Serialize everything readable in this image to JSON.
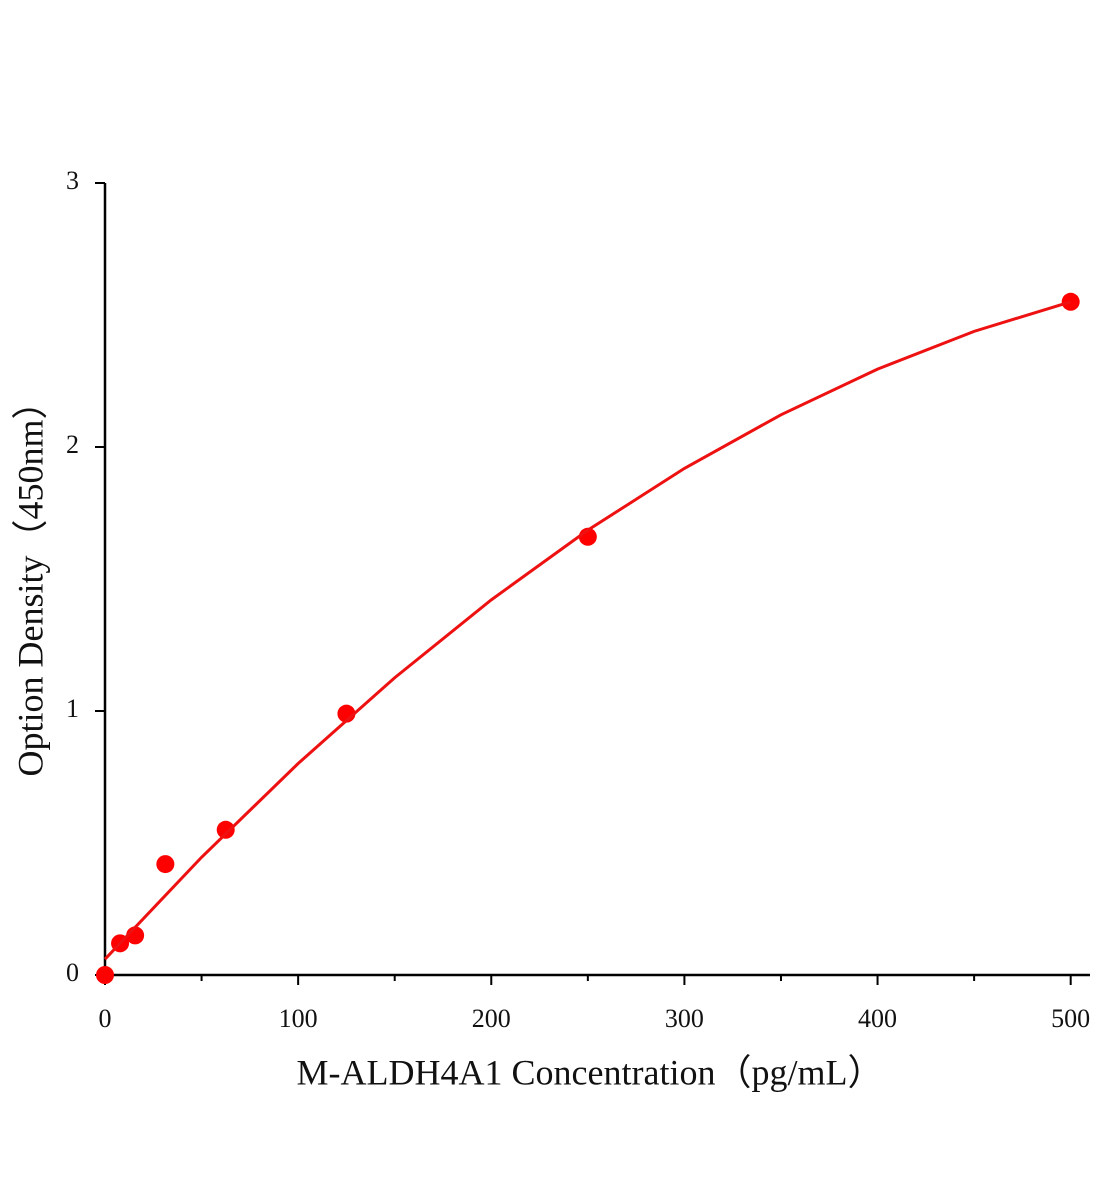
{
  "chart_data": {
    "type": "scatter",
    "xlabel": "M-ALDH4A1 Concentration（pg/mL）",
    "ylabel": "Option Density（450nm）",
    "xlim": [
      0,
      510
    ],
    "xticks": [
      0,
      100,
      200,
      300,
      400,
      500
    ],
    "xminorticks": [
      50,
      150,
      250,
      350,
      450
    ],
    "ylim": [
      0,
      3
    ],
    "yticks": [
      0,
      1,
      2,
      3
    ],
    "grid": false,
    "series": [
      {
        "mode": "markers",
        "color": "#ff0000",
        "x": [
          0,
          7.8,
          15.6,
          31.25,
          62.5,
          125,
          250,
          500
        ],
        "values": [
          0,
          0.12,
          0.15,
          0.42,
          0.55,
          0.99,
          1.66,
          2.55
        ]
      },
      {
        "mode": "line",
        "color": "#ee1111",
        "x": [
          0,
          50,
          100,
          150,
          200,
          250,
          300,
          350,
          400,
          450,
          500
        ],
        "values": [
          0.06,
          0.446,
          0.801,
          1.126,
          1.421,
          1.685,
          1.919,
          2.122,
          2.295,
          2.438,
          2.55
        ]
      }
    ]
  }
}
